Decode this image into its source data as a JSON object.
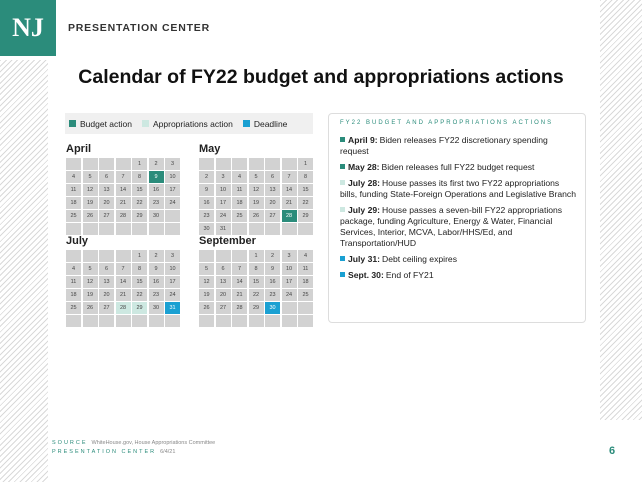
{
  "header": {
    "logo": "NJ",
    "brand": "PRESENTATION CENTER"
  },
  "title": "Calendar of FY22 budget and appropriations actions",
  "legend": [
    {
      "name": "Budget action",
      "color": "#2b8c7b"
    },
    {
      "name": "Appropriations action",
      "color": "#cde8e1"
    },
    {
      "name": "Deadline",
      "color": "#1aa0d2"
    }
  ],
  "calendars": [
    {
      "month": "April",
      "weeks": [
        [
          null,
          null,
          null,
          null,
          1,
          2,
          3
        ],
        [
          4,
          5,
          6,
          7,
          8,
          9,
          10
        ],
        [
          11,
          12,
          13,
          14,
          15,
          16,
          17
        ],
        [
          18,
          19,
          20,
          21,
          22,
          23,
          24
        ],
        [
          25,
          26,
          27,
          28,
          29,
          30,
          null
        ],
        [
          null,
          null,
          null,
          null,
          null,
          null,
          null
        ]
      ],
      "highlights": [
        {
          "day": 9,
          "legend": 0
        }
      ]
    },
    {
      "month": "May",
      "weeks": [
        [
          null,
          null,
          null,
          null,
          null,
          null,
          1
        ],
        [
          2,
          3,
          4,
          5,
          6,
          7,
          8
        ],
        [
          9,
          10,
          11,
          12,
          13,
          14,
          15
        ],
        [
          16,
          17,
          18,
          19,
          20,
          21,
          22
        ],
        [
          23,
          24,
          25,
          26,
          27,
          28,
          29
        ],
        [
          30,
          31,
          null,
          null,
          null,
          null,
          null
        ]
      ],
      "highlights": [
        {
          "day": 28,
          "legend": 0
        }
      ]
    },
    {
      "month": "July",
      "weeks": [
        [
          null,
          null,
          null,
          null,
          1,
          2,
          3
        ],
        [
          4,
          5,
          6,
          7,
          8,
          9,
          10
        ],
        [
          11,
          12,
          13,
          14,
          15,
          16,
          17
        ],
        [
          18,
          19,
          20,
          21,
          22,
          23,
          24
        ],
        [
          25,
          26,
          27,
          28,
          29,
          30,
          31
        ],
        [
          null,
          null,
          null,
          null,
          null,
          null,
          null
        ]
      ],
      "highlights": [
        {
          "day": 28,
          "legend": 1
        },
        {
          "day": 29,
          "legend": 1
        },
        {
          "day": 31,
          "legend": 2
        }
      ]
    },
    {
      "month": "September",
      "weeks": [
        [
          null,
          null,
          null,
          1,
          2,
          3,
          4
        ],
        [
          5,
          6,
          7,
          8,
          9,
          10,
          11
        ],
        [
          12,
          13,
          14,
          15,
          16,
          17,
          18
        ],
        [
          19,
          20,
          21,
          22,
          23,
          24,
          25
        ],
        [
          26,
          27,
          28,
          29,
          30,
          null,
          null
        ],
        [
          null,
          null,
          null,
          null,
          null,
          null,
          null
        ]
      ],
      "highlights": [
        {
          "day": 30,
          "legend": 2
        }
      ]
    }
  ],
  "actions": {
    "heading": "FY22 BUDGET AND APPROPRIATIONS ACTIONS",
    "items": [
      {
        "date": "April 9:",
        "text": "Biden releases FY22 discretionary spending request",
        "legend": 0
      },
      {
        "date": "May 28:",
        "text": "Biden releases full FY22 budget request",
        "legend": 0
      },
      {
        "date": "July 28:",
        "text": "House passes its first two FY22 appropriations bills, funding State-Foreign Operations and Legislative Branch",
        "legend": 1
      },
      {
        "date": "July 29:",
        "text": "House passes a seven-bill FY22 appropriations package, funding Agriculture, Energy & Water, Financial Services, Interior, MCVA, Labor/HHS/Ed, and Transportation/HUD",
        "legend": 1
      },
      {
        "date": "July 31:",
        "text": "Debt ceiling expires",
        "legend": 2
      },
      {
        "date": "Sept. 30:",
        "text": "End of FY21",
        "legend": 2
      }
    ]
  },
  "footer": {
    "source_label": "SOURCE",
    "source": "WhiteHouse.gov, House Appropriations Committee",
    "org": "PRESENTATION CENTER",
    "date": "6/4/21",
    "page": "6"
  }
}
